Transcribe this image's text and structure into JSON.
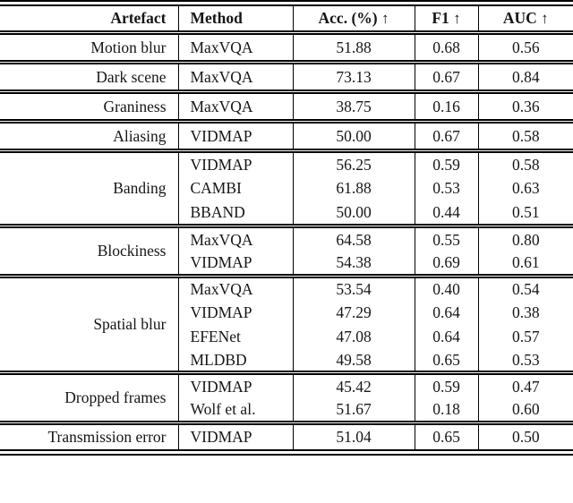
{
  "page": {
    "background_color": "#ffffff",
    "text_color": "#161616",
    "rule_color": "#000000"
  },
  "table": {
    "columns": [
      {
        "id": "artefact",
        "label": "Artefact",
        "arrow": ""
      },
      {
        "id": "method",
        "label": "Method",
        "arrow": ""
      },
      {
        "id": "acc",
        "label": "Acc. (%)",
        "arrow": "↑"
      },
      {
        "id": "f1",
        "label": "F1",
        "arrow": "↑"
      },
      {
        "id": "auc",
        "label": "AUC",
        "arrow": "↑"
      }
    ],
    "groups": [
      {
        "artefact": "Motion blur",
        "rows": [
          {
            "method": "MaxVQA",
            "acc": "51.88",
            "f1": "0.68",
            "auc": "0.56"
          }
        ]
      },
      {
        "artefact": "Dark scene",
        "rows": [
          {
            "method": "MaxVQA",
            "acc": "73.13",
            "f1": "0.67",
            "auc": "0.84"
          }
        ]
      },
      {
        "artefact": "Graniness",
        "rows": [
          {
            "method": "MaxVQA",
            "acc": "38.75",
            "f1": "0.16",
            "auc": "0.36"
          }
        ]
      },
      {
        "artefact": "Aliasing",
        "rows": [
          {
            "method": "VIDMAP",
            "acc": "50.00",
            "f1": "0.67",
            "auc": "0.58"
          }
        ]
      },
      {
        "artefact": "Banding",
        "rows": [
          {
            "method": "VIDMAP",
            "acc": "56.25",
            "f1": "0.59",
            "auc": "0.58"
          },
          {
            "method": "CAMBI",
            "acc": "61.88",
            "f1": "0.53",
            "auc": "0.63"
          },
          {
            "method": "BBAND",
            "acc": "50.00",
            "f1": "0.44",
            "auc": "0.51"
          }
        ]
      },
      {
        "artefact": "Blockiness",
        "rows": [
          {
            "method": "MaxVQA",
            "acc": "64.58",
            "f1": "0.55",
            "auc": "0.80"
          },
          {
            "method": "VIDMAP",
            "acc": "54.38",
            "f1": "0.69",
            "auc": "0.61"
          }
        ]
      },
      {
        "artefact": "Spatial blur",
        "rows": [
          {
            "method": "MaxVQA",
            "acc": "53.54",
            "f1": "0.40",
            "auc": "0.54"
          },
          {
            "method": "VIDMAP",
            "acc": "47.29",
            "f1": "0.64",
            "auc": "0.38"
          },
          {
            "method": "EFENet",
            "acc": "47.08",
            "f1": "0.64",
            "auc": "0.57"
          },
          {
            "method": "MLDBD",
            "acc": "49.58",
            "f1": "0.65",
            "auc": "0.53"
          }
        ]
      },
      {
        "artefact": "Dropped frames",
        "rows": [
          {
            "method": "VIDMAP",
            "acc": "45.42",
            "f1": "0.59",
            "auc": "0.47"
          },
          {
            "method": "Wolf et al.",
            "acc": "51.67",
            "f1": "0.18",
            "auc": "0.60"
          }
        ]
      },
      {
        "artefact": "Transmission error",
        "rows": [
          {
            "method": "VIDMAP",
            "acc": "51.04",
            "f1": "0.65",
            "auc": "0.50"
          }
        ]
      }
    ]
  }
}
